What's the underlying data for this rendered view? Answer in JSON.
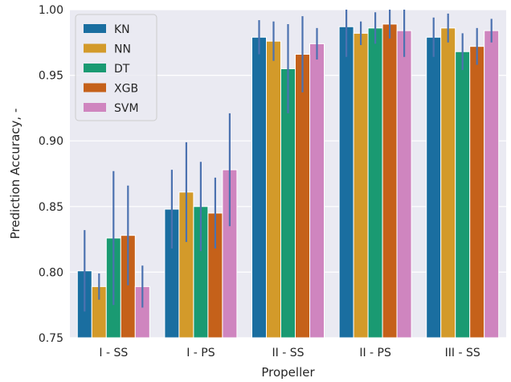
{
  "chart_data": {
    "type": "bar",
    "xlabel": "Propeller",
    "ylabel": "Prediction Accuracy, -",
    "ylim": [
      0.75,
      1.0
    ],
    "yticks": [
      "0.75",
      "0.80",
      "0.85",
      "0.90",
      "0.95",
      "1.00"
    ],
    "categories": [
      "I - SS",
      "I - PS",
      "II - SS",
      "II - PS",
      "III - SS"
    ],
    "grid": true,
    "legend_position": "top-left",
    "background": "#eaeaf2",
    "error_bar_color": "#4c72b0",
    "series": [
      {
        "name": "KN",
        "color": "#1a6ea0",
        "values": [
          0.801,
          0.848,
          0.979,
          0.987,
          0.979
        ],
        "errors": [
          0.031,
          0.03,
          0.013,
          0.023,
          0.015
        ]
      },
      {
        "name": "NN",
        "color": "#d39a2a",
        "values": [
          0.789,
          0.861,
          0.976,
          0.982,
          0.986
        ],
        "errors": [
          0.01,
          0.038,
          0.015,
          0.009,
          0.011
        ]
      },
      {
        "name": "DT",
        "color": "#1a9a72",
        "values": [
          0.826,
          0.85,
          0.955,
          0.986,
          0.968
        ],
        "errors": [
          0.051,
          0.034,
          0.034,
          0.012,
          0.014
        ]
      },
      {
        "name": "XGB",
        "color": "#c5611a",
        "values": [
          0.828,
          0.845,
          0.966,
          0.989,
          0.972
        ],
        "errors": [
          0.038,
          0.027,
          0.029,
          0.011,
          0.014
        ]
      },
      {
        "name": "SVM",
        "color": "#cf85bf",
        "values": [
          0.789,
          0.878,
          0.974,
          0.984,
          0.984
        ],
        "errors": [
          0.016,
          0.043,
          0.012,
          0.02,
          0.009
        ]
      }
    ]
  }
}
